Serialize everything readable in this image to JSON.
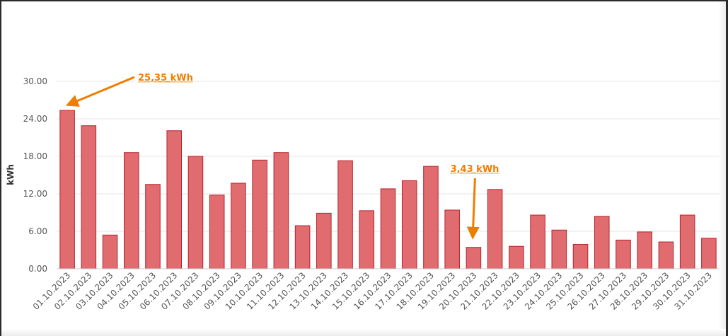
{
  "chart_data": {
    "type": "bar",
    "ylabel": "kWh",
    "ylim": [
      0,
      30
    ],
    "yticks": [
      "0.00",
      "6.00",
      "12.00",
      "18.00",
      "24.00",
      "30.00"
    ],
    "categories": [
      "01.10.2023",
      "02.10.2023",
      "03.10.2023",
      "04.10.2023",
      "05.10.2023",
      "06.10.2023",
      "07.10.2023",
      "08.10.2023",
      "09.10.2023",
      "10.10.2023",
      "11.10.2023",
      "12.10.2023",
      "13.10.2023",
      "14.10.2023",
      "15.10.2023",
      "16.10.2023",
      "17.10.2023",
      "18.10.2023",
      "19.10.2023",
      "20.10.2023",
      "21.10.2023",
      "22.10.2023",
      "23.10.2023",
      "24.10.2023",
      "25.10.2023",
      "26.10.2023",
      "27.10.2023",
      "28.10.2023",
      "29.10.2023",
      "30.10.2023",
      "31.10.2023"
    ],
    "values": [
      25.35,
      22.9,
      5.4,
      18.6,
      13.5,
      22.1,
      18.0,
      11.8,
      13.7,
      17.4,
      18.6,
      6.9,
      8.9,
      17.3,
      9.3,
      12.8,
      14.1,
      16.4,
      9.4,
      3.43,
      12.7,
      3.6,
      8.6,
      6.2,
      3.9,
      8.4,
      4.6,
      5.9,
      4.3,
      8.6,
      4.9
    ],
    "bar_color": "#e06c70",
    "bar_border_color": "#b8232b",
    "grid": true,
    "annotations": [
      {
        "text": "25,35 kWh",
        "index": 0,
        "color": "#f07d00"
      },
      {
        "text": "3,43 kWh",
        "index": 19,
        "color": "#f07d00"
      }
    ]
  }
}
